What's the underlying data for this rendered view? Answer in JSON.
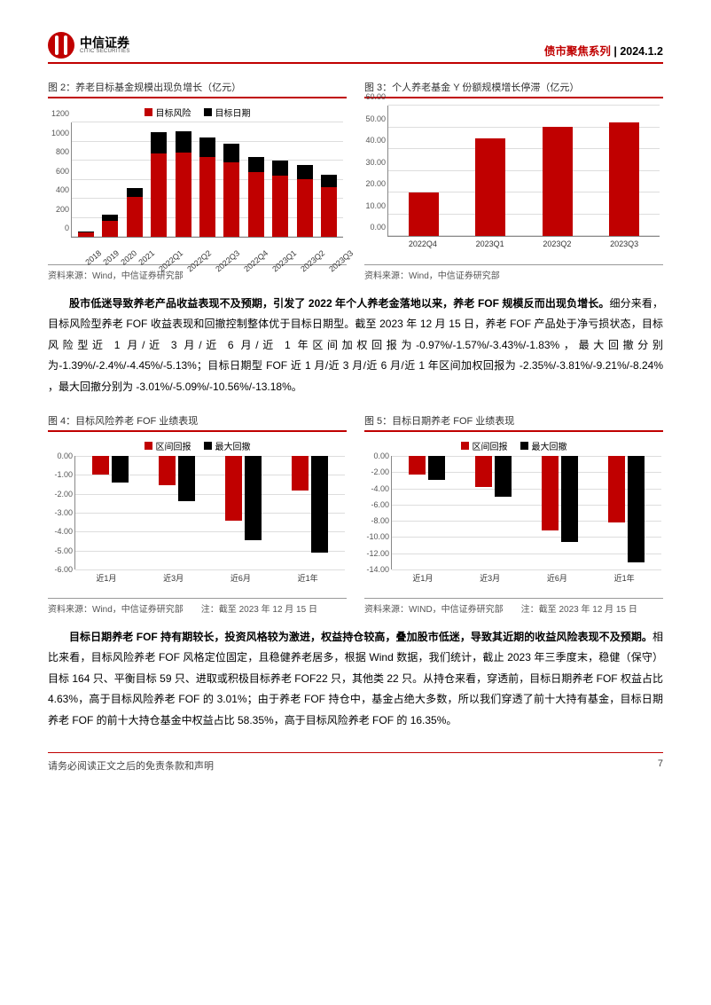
{
  "header": {
    "logo_cn": "中信证券",
    "logo_en": "CITIC SECURITIES",
    "series": "债市聚焦系列",
    "sep": " | ",
    "date": "2024.1.2"
  },
  "colors": {
    "red": "#c00000",
    "black": "#000000",
    "grid": "#dddddd"
  },
  "chart2": {
    "title": "图 2：养老目标基金规模出现负增长（亿元）",
    "legend": [
      "目标风险",
      "目标日期"
    ],
    "ylim": [
      0,
      1200
    ],
    "yticks": [
      0,
      200,
      400,
      600,
      800,
      1000,
      1200
    ],
    "categories": [
      "2018",
      "2019",
      "2020",
      "2021",
      "2022Q1",
      "2022Q2",
      "2022Q3",
      "2022Q4",
      "2023Q1",
      "2023Q2",
      "2023Q3"
    ],
    "risk": [
      45,
      170,
      420,
      870,
      880,
      830,
      775,
      670,
      635,
      600,
      520
    ],
    "date": [
      15,
      60,
      90,
      220,
      215,
      200,
      190,
      165,
      155,
      145,
      125
    ],
    "source": "资料来源：Wind，中信证券研究部"
  },
  "chart3": {
    "title": "图 3：个人养老基金 Y 份额规模增长停滞（亿元）",
    "ylim": [
      0,
      60
    ],
    "yticks": [
      "0.00",
      "10.00",
      "20.00",
      "30.00",
      "40.00",
      "50.00",
      "60.00"
    ],
    "categories": [
      "2022Q4",
      "2023Q1",
      "2023Q2",
      "2023Q3"
    ],
    "values": [
      20,
      44.5,
      50,
      52
    ],
    "source": "资料来源：Wind，中信证券研究部"
  },
  "para1": {
    "lead": "股市低迷导致养老产品收益表现不及预期，引发了 2022 年个人养老金落地以来，养老 FOF 规模反而出现负增长。",
    "rest": "细分来看，目标风险型养老 FOF 收益表现和回撤控制整体优于目标日期型。截至 2023 年 12 月 15 日，养老 FOF 产品处于净亏损状态，目标风险型近 1 月/近 3 月/近 6 月/近 1 年区间加权回报为-0.97%/-1.57%/-3.43%/-1.83%，最大回撤分别为-1.39%/-2.4%/-4.45%/-5.13%；目标日期型 FOF 近 1 月/近 3 月/近 6 月/近 1 年区间加权回报为 -2.35%/-3.81%/-9.21%/-8.24% ，最大回撤分别为 -3.01%/-5.09%/-10.56%/-13.18%。"
  },
  "chart4": {
    "title": "图 4：目标风险养老 FOF 业绩表现",
    "legend": [
      "区间回报",
      "最大回撤"
    ],
    "ylim": [
      -6,
      0
    ],
    "yticks": [
      "0.00",
      "-1.00",
      "-2.00",
      "-3.00",
      "-4.00",
      "-5.00",
      "-6.00"
    ],
    "categories": [
      "近1月",
      "近3月",
      "近6月",
      "近1年"
    ],
    "ret": [
      -0.97,
      -1.57,
      -3.43,
      -1.83
    ],
    "dd": [
      -1.39,
      -2.4,
      -4.45,
      -5.13
    ],
    "source": "资料来源：Wind，中信证券研究部",
    "note": "注：截至 2023 年 12 月 15 日"
  },
  "chart5": {
    "title": "图 5：目标日期养老 FOF 业绩表现",
    "legend": [
      "区间回报",
      "最大回撤"
    ],
    "ylim": [
      -14,
      0
    ],
    "yticks": [
      "0.00",
      "-2.00",
      "-4.00",
      "-6.00",
      "-8.00",
      "-10.00",
      "-12.00",
      "-14.00"
    ],
    "categories": [
      "近1月",
      "近3月",
      "近6月",
      "近1年"
    ],
    "ret": [
      -2.35,
      -3.81,
      -9.21,
      -8.24
    ],
    "dd": [
      -3.01,
      -5.09,
      -10.56,
      -13.18
    ],
    "source": "资料来源：WIND，中信证券研究部",
    "note": "注：截至 2023 年 12 月 15 日"
  },
  "para2": {
    "lead": "目标日期养老 FOF 持有期较长，投资风格较为激进，权益持仓较高，叠加股市低迷，导致其近期的收益风险表现不及预期。",
    "rest": "相比来看，目标风险养老 FOF 风格定位固定，且稳健养老居多，根据 Wind 数据，我们统计，截止 2023 年三季度末，稳健（保守）目标 164 只、平衡目标 59 只、进取或积极目标养老 FOF22 只，其他类 22 只。从持仓来看，穿透前，目标日期养老 FOF 权益占比 4.63%，高于目标风险养老 FOF 的 3.01%；由于养老 FOF 持仓中，基金占绝大多数，所以我们穿透了前十大持有基金，目标日期养老 FOF 的前十大持仓基金中权益占比 58.35%，高于目标风险养老 FOF 的 16.35%。"
  },
  "footer": {
    "disclaimer": "请务必阅读正文之后的免责条款和声明",
    "page": "7"
  }
}
